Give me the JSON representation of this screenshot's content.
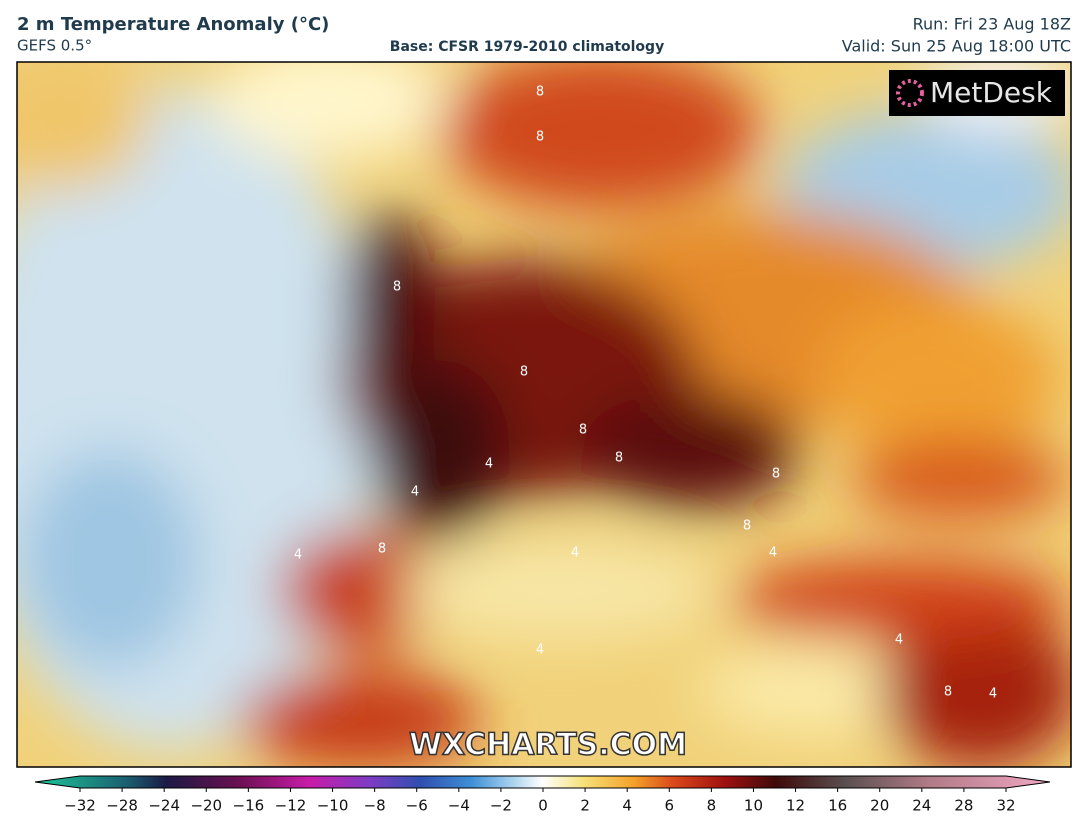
{
  "header": {
    "title": "2 m Temperature Anomaly (°C)",
    "model": "GEFS 0.5°",
    "base": "Base: CFSR 1979-2010 climatology",
    "run": "Run: Fri 23 Aug 18Z",
    "valid": "Valid: Sun 25 Aug 18:00 UTC"
  },
  "map": {
    "logo": "MetDesk",
    "watermark": "WXCHARTS.COM",
    "contour_labels": [
      "8",
      "8",
      "8",
      "8",
      "8",
      "8",
      "8",
      "8",
      "4",
      "4",
      "4",
      "4",
      "4",
      "4",
      "4",
      "4",
      "8",
      "8"
    ]
  },
  "colorbar": {
    "ticks": [
      {
        "value": -32,
        "label": "−32"
      },
      {
        "value": -28,
        "label": "−28"
      },
      {
        "value": -24,
        "label": "−24"
      },
      {
        "value": -20,
        "label": "−20"
      },
      {
        "value": -16,
        "label": "−16"
      },
      {
        "value": -12,
        "label": "−12"
      },
      {
        "value": -10,
        "label": "−10"
      },
      {
        "value": -8,
        "label": "−8"
      },
      {
        "value": -6,
        "label": "−6"
      },
      {
        "value": -4,
        "label": "−4"
      },
      {
        "value": -2,
        "label": "−2"
      },
      0,
      2,
      4,
      6,
      8,
      10,
      12,
      16,
      20,
      24,
      28,
      32
    ]
  }
}
